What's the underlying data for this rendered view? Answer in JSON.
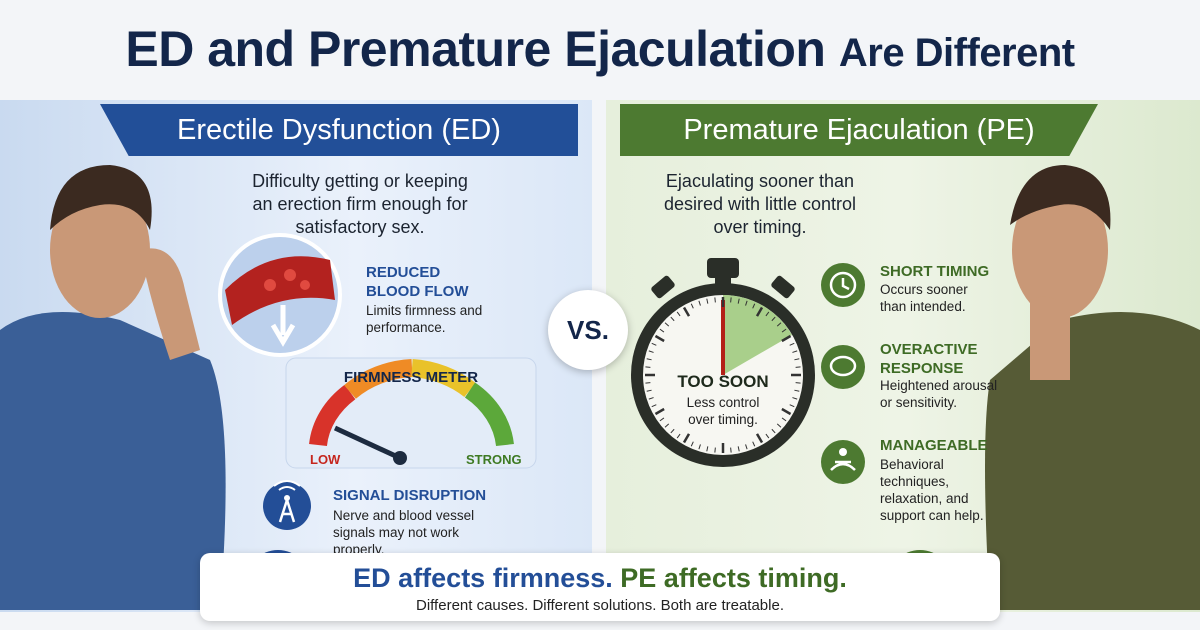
{
  "title": {
    "main": "ED and Premature Ejaculation",
    "tail": "Are Different"
  },
  "ed": {
    "heading": "Erectile Dysfunction (ED)",
    "description": "Difficulty getting or keeping an erection firm enough for satisfactory sex.",
    "features": [
      {
        "title": "REDUCED BLOOD FLOW",
        "text": "Limits firmness and performance."
      },
      {
        "title": "SIGNAL DISRUPTION",
        "text": "Nerve and blood vessel signals may not work properly."
      }
    ],
    "meter": {
      "title": "FIRMNESS METER",
      "low": "LOW",
      "high": "STRONG"
    }
  },
  "vs": "VS.",
  "pe": {
    "heading": "Premature Ejaculation (PE)",
    "description": "Ejaculating sooner than desired with little control over timing.",
    "stopwatch": {
      "title": "TOO SOON",
      "text": "Less control over timing."
    },
    "features": [
      {
        "title": "SHORT TIMING",
        "text": "Occurs sooner than intended."
      },
      {
        "title": "OVERACTIVE RESPONSE",
        "text": "Heightened arousal or sensitivity."
      },
      {
        "title": "MANAGEABLE",
        "text": "Behavioral techniques, relaxation, and support can help."
      }
    ]
  },
  "footer": {
    "ed_part": "ED affects firmness.",
    "pe_part": "PE affects timing.",
    "subtitle": "Different causes. Different solutions. Both are treatable."
  }
}
